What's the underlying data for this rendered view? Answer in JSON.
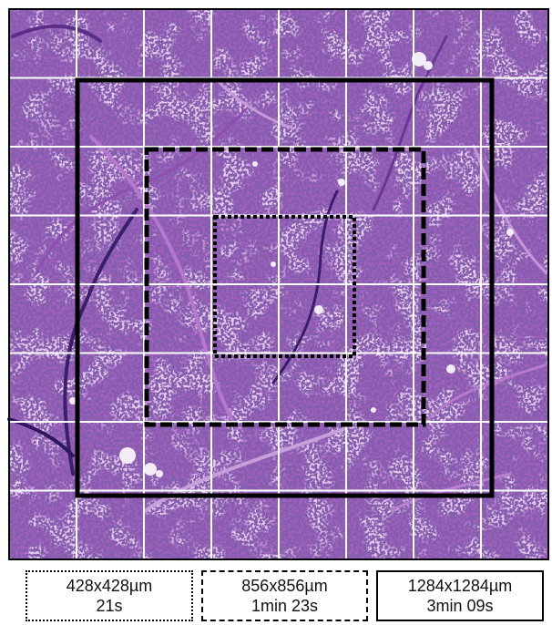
{
  "figure": {
    "grid": {
      "cols": 8,
      "rows": 8
    },
    "colors": {
      "tissue_base": "#a35fc0",
      "tissue_light": "#c48ad6",
      "nuclei": "#3a1c6a",
      "grid_line": "#ffffff",
      "outline": "#000000"
    },
    "regions": [
      {
        "id": "small",
        "style": "dotted",
        "size_label": "428x428µm",
        "time_label": "21s"
      },
      {
        "id": "medium",
        "style": "dashed",
        "size_label": "856x856µm",
        "time_label": "1min 23s"
      },
      {
        "id": "large",
        "style": "solid",
        "size_label": "1284x1284µm",
        "time_label": "3min 09s"
      }
    ]
  }
}
